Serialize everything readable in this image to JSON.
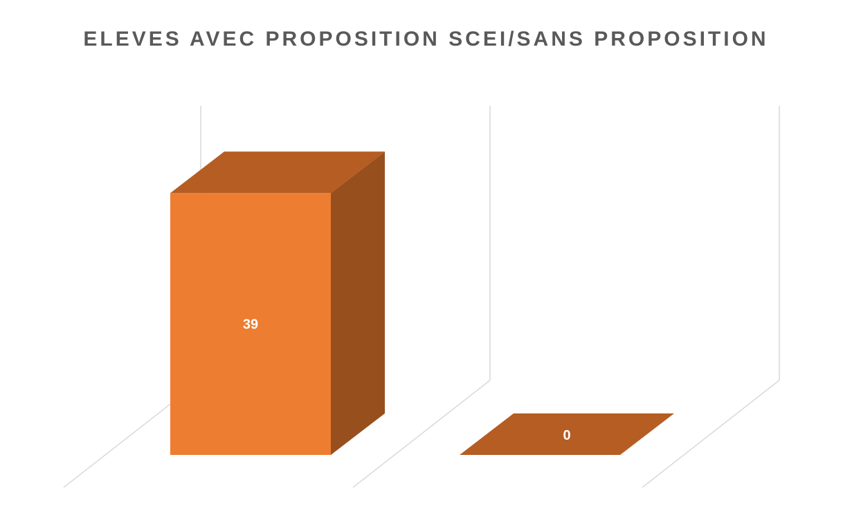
{
  "chart_data": {
    "type": "bar",
    "style": "3d-column",
    "title": "ELEVES AVEC PROPOSITION SCEI/SANS PROPOSITION",
    "categories": [
      "",
      ""
    ],
    "values": [
      39,
      0
    ],
    "data_labels": [
      "39",
      "0"
    ],
    "xlabel": "",
    "ylabel": "",
    "ylim": [
      0,
      45
    ],
    "grid": true,
    "legend": "none",
    "colors": {
      "front": "#ED7D31",
      "top": "#B55D22",
      "side": "#984F1E",
      "grid": "#D9D9D9",
      "label": "#FFFFFF",
      "title": "#595959"
    }
  }
}
